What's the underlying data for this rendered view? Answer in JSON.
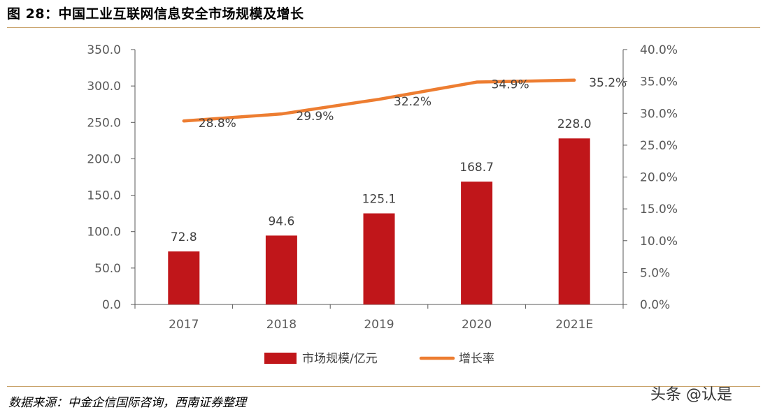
{
  "figure": {
    "title": "图 28：中国工业互联网信息安全市场规模及增长",
    "source": "数据来源：中金企信国际咨询，西南证券整理",
    "watermark": "头条 @认是"
  },
  "chart_data": {
    "type": "bar",
    "categories": [
      "2017",
      "2018",
      "2019",
      "2020",
      "2021E"
    ],
    "series": [
      {
        "name": "市场规模/亿元",
        "type": "bar",
        "axis": "left",
        "color": "#c0161a",
        "values": [
          72.8,
          94.6,
          125.1,
          168.7,
          228.0
        ],
        "labels": [
          "72.8",
          "94.6",
          "125.1",
          "168.7",
          "228.0"
        ]
      },
      {
        "name": "增长率",
        "type": "line",
        "axis": "right",
        "color": "#ed7d31",
        "values": [
          28.8,
          29.9,
          32.2,
          34.9,
          35.2
        ],
        "labels": [
          "28.8%",
          "29.9%",
          "32.2%",
          "34.9%",
          "35.2%"
        ]
      }
    ],
    "y_left": {
      "min": 0,
      "max": 350,
      "step": 50,
      "tick_labels": [
        "0.0",
        "50.0",
        "100.0",
        "150.0",
        "200.0",
        "250.0",
        "300.0",
        "350.0"
      ]
    },
    "y_right": {
      "min": 0,
      "max": 40,
      "step": 5,
      "tick_labels": [
        "0.0%",
        "5.0%",
        "10.0%",
        "15.0%",
        "20.0%",
        "25.0%",
        "30.0%",
        "35.0%",
        "40.0%"
      ]
    },
    "legend_position": "bottom",
    "grid": false
  }
}
